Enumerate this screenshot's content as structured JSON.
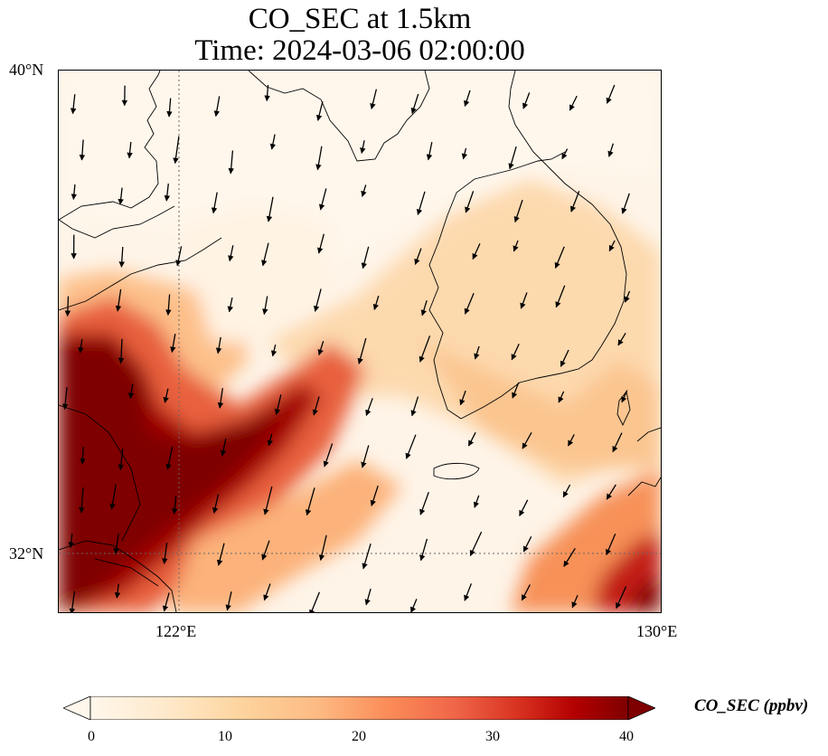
{
  "title": {
    "line1": "CO_SEC at 1.5km",
    "line2": "Time: 2024-03-06 02:00:00"
  },
  "axes": {
    "lat_labels": [
      "40°N",
      "32°N"
    ],
    "lon_labels": [
      "122°E",
      "130°E"
    ]
  },
  "colorbar": {
    "label": "CO_SEC (ppbv)",
    "ticks": [
      "0",
      "10",
      "20",
      "30",
      "40"
    ],
    "min": 0,
    "max": 40,
    "extend": "both",
    "colormap": "OrRd",
    "colors": [
      "#fff7ec",
      "#fee8c8",
      "#fdd49e",
      "#fdbb84",
      "#fc8d59",
      "#ef6548",
      "#d7301f",
      "#b30000",
      "#7f0000"
    ]
  },
  "map": {
    "projection": "lat-lon",
    "gridlines": "dotted",
    "features": [
      "coastlines",
      "country borders",
      "wind vectors"
    ]
  }
}
